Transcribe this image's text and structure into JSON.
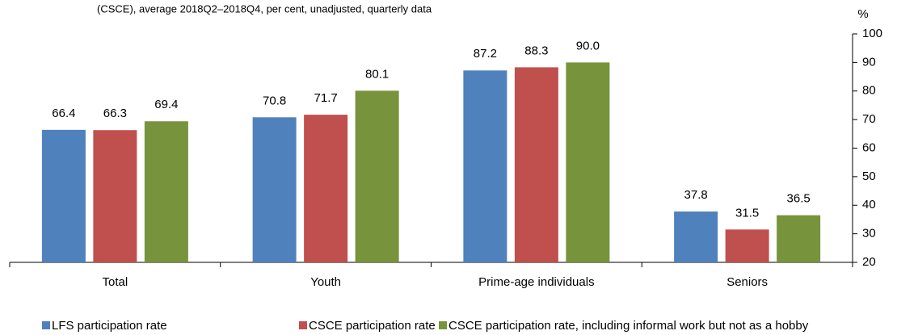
{
  "chart_data": {
    "type": "bar",
    "subtitle": "(CSCE), average 2018Q2–2018Q4, per cent, unadjusted, quarterly data",
    "y_label": "%",
    "categories": [
      "Total",
      "Youth",
      "Prime-age individuals",
      "Seniors"
    ],
    "series": [
      {
        "name": "LFS participation rate",
        "color": "#4f81bd",
        "values": [
          66.4,
          70.8,
          87.2,
          37.8
        ]
      },
      {
        "name": "CSCE participation rate",
        "color": "#c0504d",
        "values": [
          66.3,
          71.7,
          88.3,
          31.5
        ]
      },
      {
        "name": "CSCE participation rate, including informal work but not as a hobby",
        "color": "#77933c",
        "values": [
          69.4,
          80.1,
          90,
          36.5
        ],
        "value_labels": [
          "69.4",
          "80.1",
          "90.0",
          "36.5"
        ]
      }
    ],
    "ylim": [
      20,
      100
    ],
    "yticks": [
      20,
      30,
      40,
      50,
      60,
      70,
      80,
      90,
      100
    ],
    "y_axis_side": "right",
    "grid": false,
    "legend": "bottom"
  }
}
